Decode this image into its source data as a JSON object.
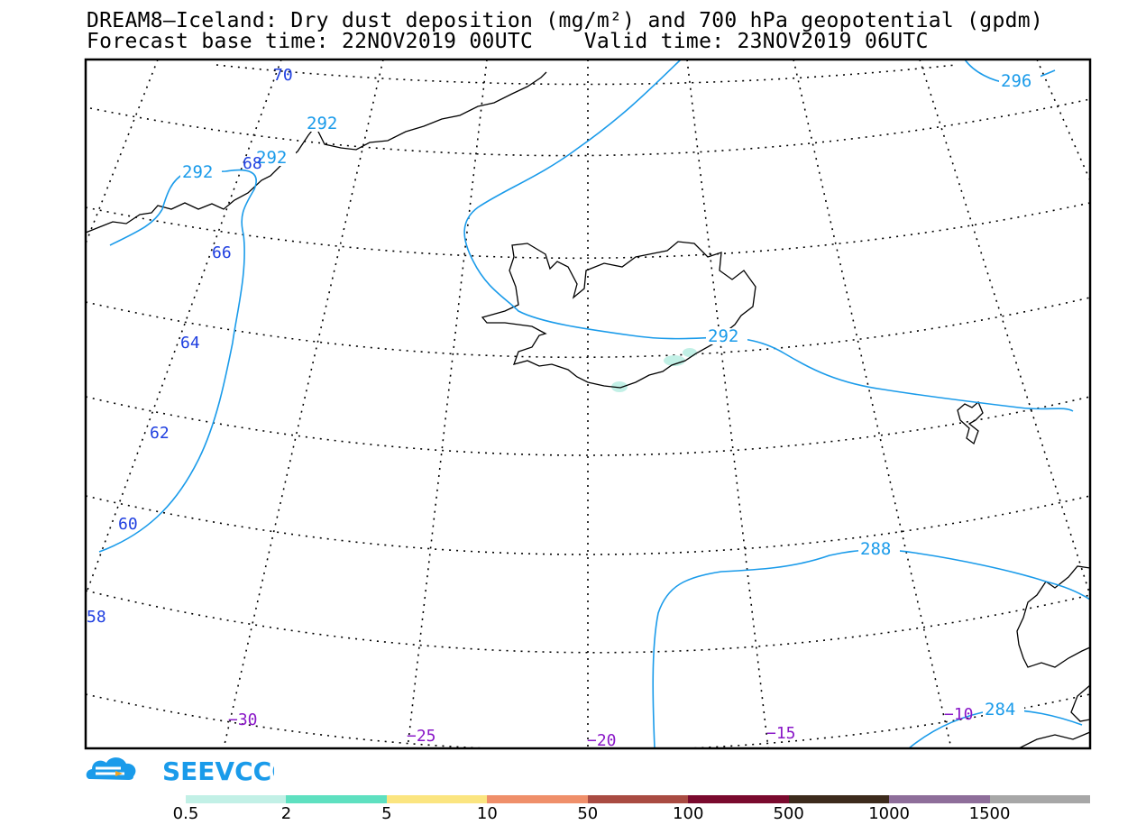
{
  "title": {
    "line1": "DREAM8—Iceland: Dry dust deposition (mg/m²) and 700 hPa geopotential (gpdm)",
    "line2": "Forecast base time: 22NOV2019 00UTC    Valid time: 23NOV2019 06UTC"
  },
  "latitude_labels": [
    "70",
    "68",
    "66",
    "64",
    "62",
    "60",
    "58"
  ],
  "longitude_labels": [
    "−30",
    "−25",
    "−20",
    "−15",
    "−10"
  ],
  "contour_labels": [
    "292",
    "292",
    "292",
    "292",
    "296",
    "288",
    "284"
  ],
  "logo_text": "SEEVCCC",
  "legend": {
    "colors": [
      "#c2f0e6",
      "#5ee0c0",
      "#fbe580",
      "#ef8f6a",
      "#a94b42",
      "#7a0a2e",
      "#3d2b1c",
      "#8e6e9a",
      "#a7a7a7"
    ],
    "ticks": [
      "0.5",
      "2",
      "5",
      "10",
      "50",
      "100",
      "500",
      "1000",
      "1500"
    ]
  },
  "colors": {
    "contour": "#1a9bea",
    "lat_label": "#1f3fe0",
    "lon_label": "#8a18c8",
    "coast": "#000000",
    "dust_patch": "#c2f0e6"
  }
}
